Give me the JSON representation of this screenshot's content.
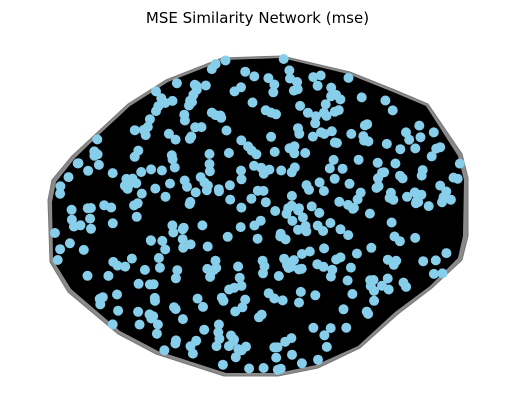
{
  "title": "MSE Similarity Network (mse)",
  "graph": {
    "type": "network",
    "node_color": "#87CEEB",
    "edge_color": "#000000",
    "hull_outline_color": "#777777",
    "node_count": 420,
    "layout": "dense random layout within an irregular oval region"
  }
}
